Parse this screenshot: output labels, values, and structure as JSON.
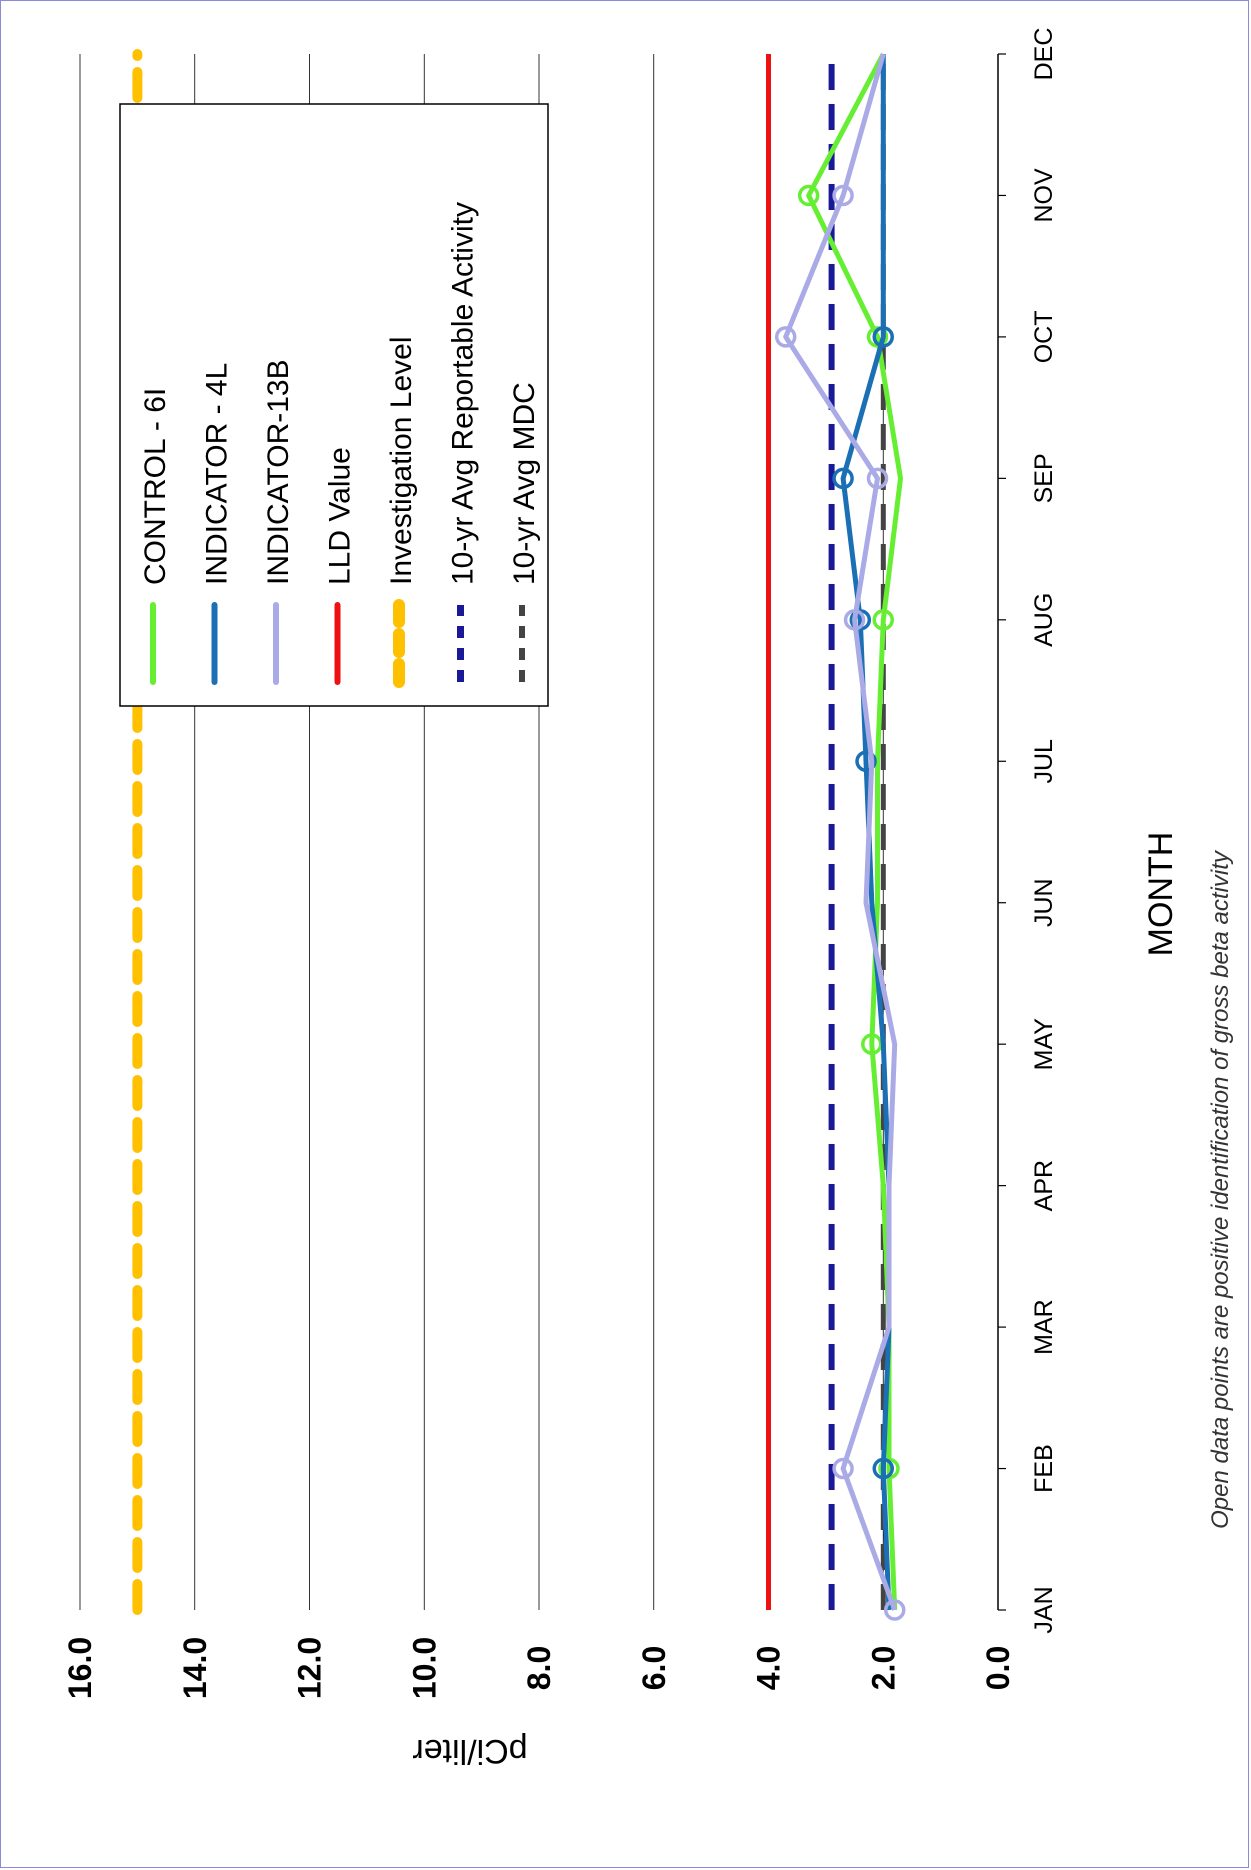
{
  "chart_data": {
    "type": "line",
    "orientation": "rotated-90-clockwise",
    "xlabel": "MONTH",
    "ylabel": "pCi/liter",
    "ylim": [
      0,
      16
    ],
    "y_ticks": [
      "0.0",
      "2.0",
      "4.0",
      "6.0",
      "8.0",
      "10.0",
      "12.0",
      "14.0",
      "16.0"
    ],
    "categories": [
      "JAN",
      "FEB",
      "MAR",
      "APR",
      "MAY",
      "JUN",
      "JUL",
      "AUG",
      "SEP",
      "OCT",
      "NOV",
      "DEC"
    ],
    "grid": true,
    "legend_position": "inside-top-right",
    "note": "Open data points are positive identification of gross beta activity",
    "series": [
      {
        "name": "CONTROL - 6I",
        "color": "#66ee33",
        "style": "solid",
        "values": [
          1.8,
          1.9,
          1.9,
          2.0,
          2.2,
          2.1,
          2.1,
          2.0,
          1.7,
          2.1,
          3.3,
          2.0
        ],
        "open_points": [
          1,
          4,
          7,
          9,
          10
        ]
      },
      {
        "name": "INDICATOR - 4L",
        "color": "#1a6fb5",
        "style": "solid",
        "values": [
          1.9,
          2.0,
          1.9,
          1.9,
          2.0,
          2.2,
          2.3,
          2.4,
          2.7,
          2.0,
          2.0,
          2.0
        ],
        "open_points": [
          1,
          6,
          7,
          8,
          9
        ]
      },
      {
        "name": "INDICATOR-13B",
        "color": "#a9aae6",
        "style": "solid",
        "values": [
          1.8,
          2.7,
          1.9,
          1.9,
          1.8,
          2.3,
          2.2,
          2.5,
          2.1,
          3.7,
          2.7,
          2.0
        ],
        "open_points": [
          0,
          1,
          7,
          8,
          9,
          10
        ]
      },
      {
        "name": "LLD Value",
        "color": "#ee1111",
        "style": "solid",
        "values": [
          4.0,
          4.0,
          4.0,
          4.0,
          4.0,
          4.0,
          4.0,
          4.0,
          4.0,
          4.0,
          4.0,
          4.0
        ]
      },
      {
        "name": "Investigation Level",
        "color": "#ffc000",
        "style": "dashed-thick",
        "values": [
          15.0,
          15.0,
          15.0,
          15.0,
          15.0,
          15.0,
          15.0,
          15.0,
          15.0,
          15.0,
          15.0,
          15.0
        ]
      },
      {
        "name": "10-yr Avg Reportable Activity",
        "color": "#1a1a99",
        "style": "dashed",
        "values": [
          2.9,
          2.9,
          2.9,
          2.9,
          2.9,
          2.9,
          2.9,
          2.9,
          2.9,
          2.9,
          2.9,
          2.9
        ]
      },
      {
        "name": "10-yr Avg MDC",
        "color": "#444444",
        "style": "dashed",
        "values": [
          2.0,
          2.0,
          2.0,
          2.0,
          2.0,
          2.0,
          2.0,
          2.0,
          2.0,
          2.0,
          2.0,
          2.0
        ]
      }
    ]
  }
}
